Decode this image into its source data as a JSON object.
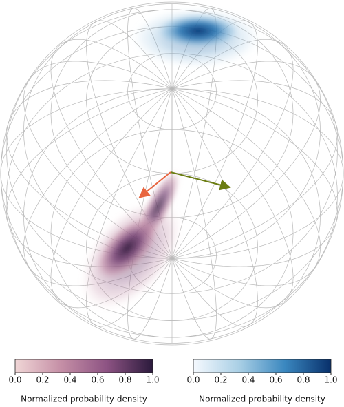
{
  "chart_data": [
    {
      "type": "colorbar",
      "xlabel": "Normalized probability density",
      "xlim": [
        0,
        1
      ],
      "xticks": [
        {
          "value": 0,
          "label": "0.0"
        },
        {
          "value": 0.2,
          "label": "0.2"
        },
        {
          "value": 0.4,
          "label": "0.4"
        },
        {
          "value": 0.6,
          "label": "0.6"
        },
        {
          "value": 0.8,
          "label": "0.8"
        },
        {
          "value": 1,
          "label": "1.0"
        }
      ],
      "colors": [
        "#f0d6d6",
        "#c58fa6",
        "#8d5383",
        "#2b1a3c"
      ]
    },
    {
      "type": "colorbar",
      "xlabel": "Normalized probability density",
      "xlim": [
        0,
        1
      ],
      "xticks": [
        {
          "value": 0,
          "label": "0.0"
        },
        {
          "value": 0.2,
          "label": "0.2"
        },
        {
          "value": 0.4,
          "label": "0.4"
        },
        {
          "value": 0.6,
          "label": "0.6"
        },
        {
          "value": 0.8,
          "label": "0.8"
        },
        {
          "value": 1,
          "label": "1.0"
        }
      ],
      "colors": [
        "#f5f9fe",
        "#a9cfe5",
        "#3a87bf",
        "#08306b"
      ]
    }
  ]
}
